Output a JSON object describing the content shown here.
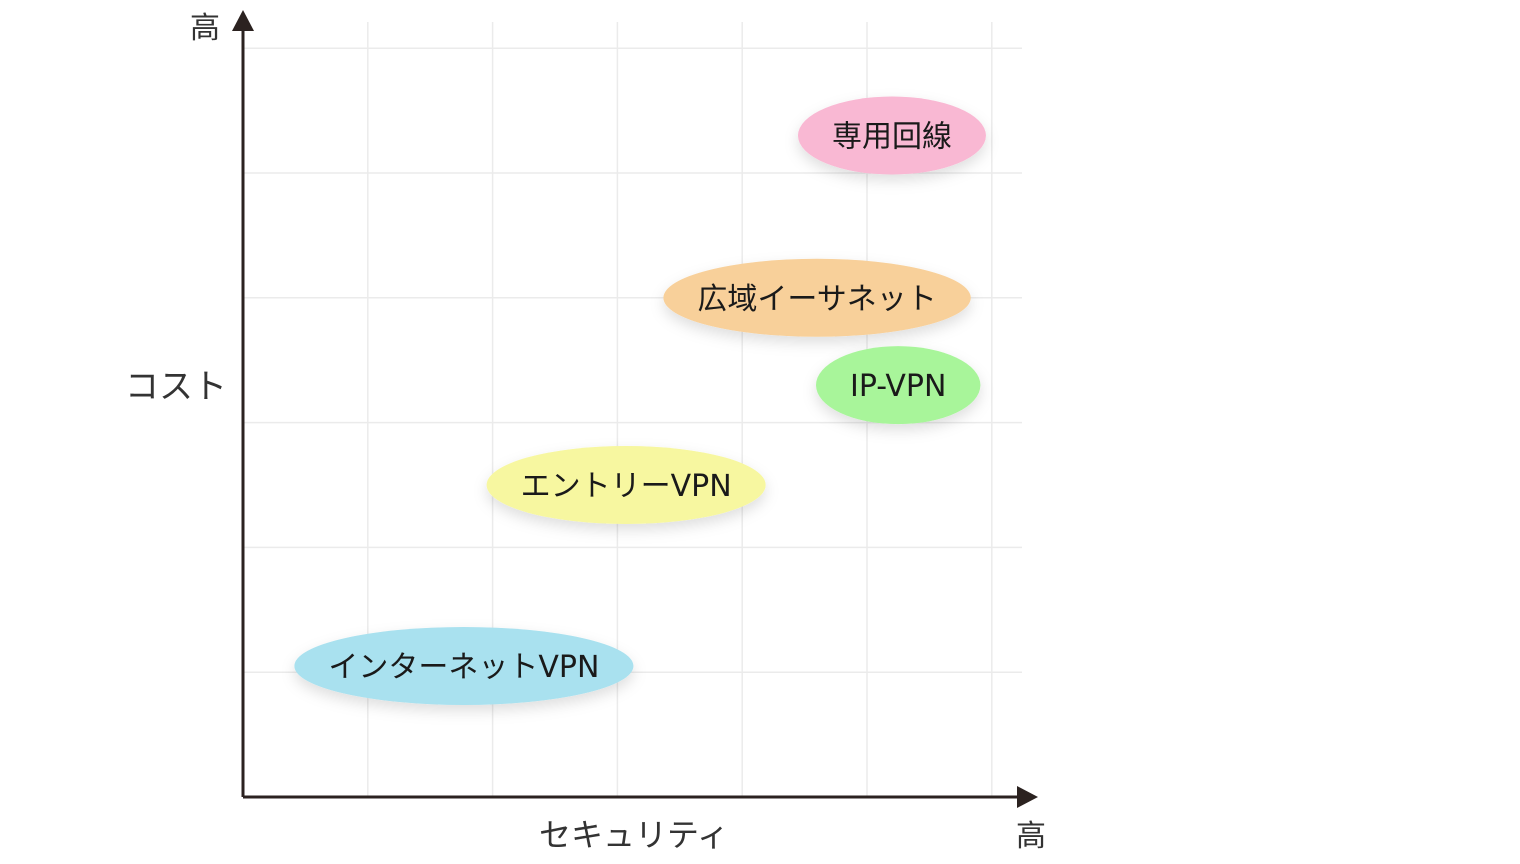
{
  "chart_data": {
    "type": "scatter",
    "x_axis": {
      "label": "セキュリティ",
      "high_label": "高",
      "range": [
        0,
        6.2
      ],
      "gridlines": [
        1,
        2,
        3,
        4,
        5,
        6
      ]
    },
    "y_axis": {
      "label": "コスト",
      "high_label": "高",
      "range": [
        0,
        6.2
      ],
      "gridlines": [
        1,
        2,
        3,
        4,
        5,
        6
      ]
    },
    "grid": true,
    "legend": "none",
    "points": [
      {
        "label": "専用回線",
        "x": 5.2,
        "y": 5.3,
        "color": "#f9b8d3"
      },
      {
        "label": "広域イーサネット",
        "x": 4.6,
        "y": 4.0,
        "color": "#f8d09a"
      },
      {
        "label": "IP-VPN",
        "x": 5.25,
        "y": 3.3,
        "color": "#a8f59a"
      },
      {
        "label": "エントリーVPN",
        "x": 3.07,
        "y": 2.5,
        "color": "#f7f7a0"
      },
      {
        "label": "インターネットVPN",
        "x": 1.77,
        "y": 1.05,
        "color": "#a9e1ef"
      }
    ]
  }
}
